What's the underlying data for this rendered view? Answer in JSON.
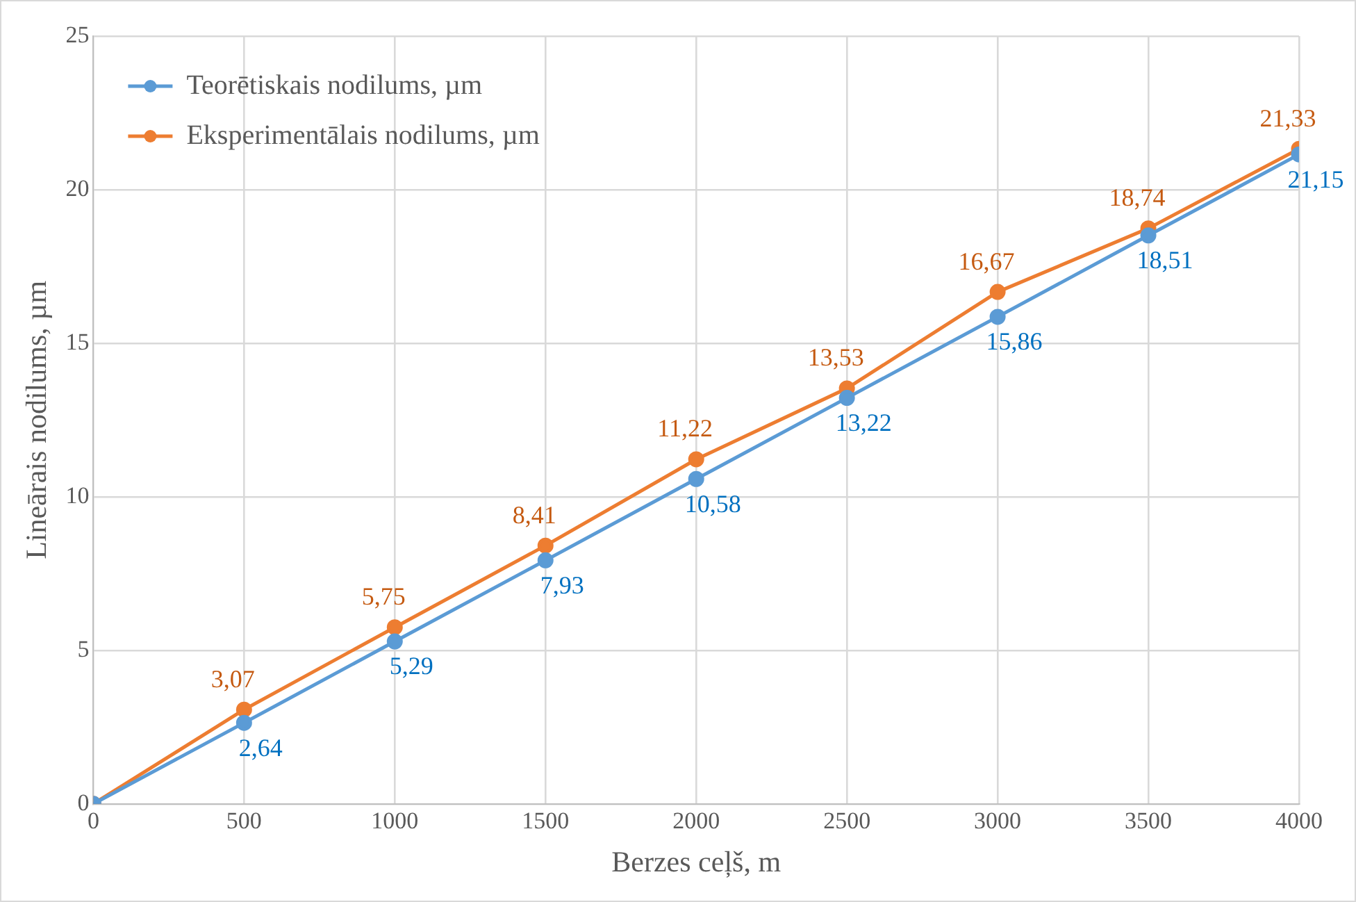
{
  "chart_data": {
    "type": "line",
    "xlabel": "Berzes ceļš, m",
    "ylabel": "Lineārais nodilums, µm",
    "x": [
      0,
      500,
      1000,
      1500,
      2000,
      2500,
      3000,
      3500,
      4000
    ],
    "series": [
      {
        "name": "Teorētiskais nodilums, µm",
        "color": "#5b9bd5",
        "values": [
          0,
          2.64,
          5.29,
          7.93,
          10.58,
          13.22,
          15.86,
          18.51,
          21.15
        ],
        "value_labels": [
          null,
          "2,64",
          "5,29",
          "7,93",
          "10,58",
          "13,22",
          "15,86",
          "18,51",
          "21,15"
        ]
      },
      {
        "name": "Eksperimentālais nodilums, µm",
        "color": "#ed7d31",
        "values": [
          0,
          3.07,
          5.75,
          8.41,
          11.22,
          13.53,
          16.67,
          18.74,
          21.33
        ],
        "value_labels": [
          null,
          "3,07",
          "5,75",
          "8,41",
          "11,22",
          "13,53",
          "16,67",
          "18,74",
          "21,33"
        ]
      }
    ],
    "xlim": [
      0,
      4000
    ],
    "xticks": [
      0,
      500,
      1000,
      1500,
      2000,
      2500,
      3000,
      3500,
      4000
    ],
    "ylim": [
      0,
      25
    ],
    "yticks": [
      0,
      5,
      10,
      15,
      20,
      25
    ],
    "grid": true,
    "legend": "top left",
    "marker": "circle",
    "line_style": "solid"
  }
}
